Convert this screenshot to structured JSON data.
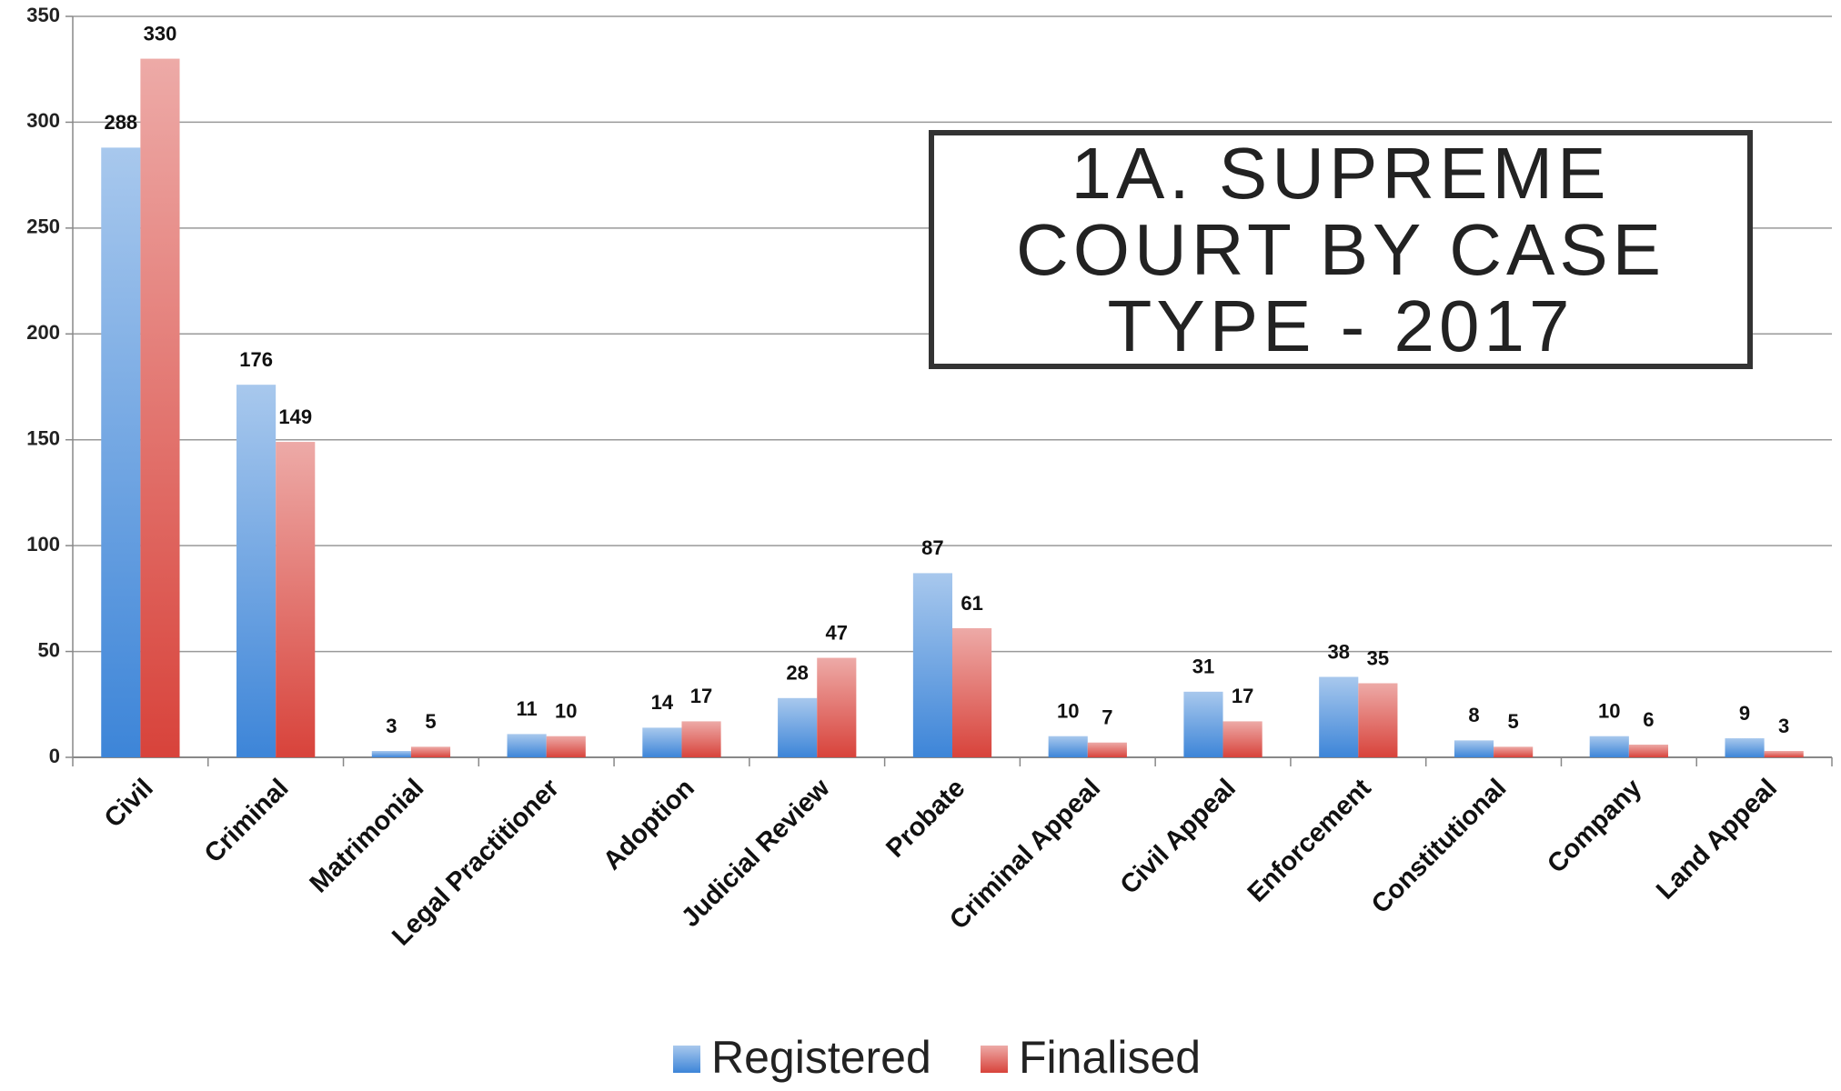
{
  "chart_data": {
    "type": "bar",
    "title": "1A. SUPREME COURT BY CASE TYPE - 2017",
    "categories": [
      "Civil",
      "Criminal",
      "Matrimonial",
      "Legal Practitioner",
      "Adoption",
      "Judicial Review",
      "Probate",
      "Criminal Appeal",
      "Civil  Appeal",
      "Enforcement",
      "Constitutional",
      "Company",
      "Land Appeal"
    ],
    "series": [
      {
        "name": "Registered",
        "color": "#3d85d8",
        "values": [
          288,
          176,
          3,
          11,
          14,
          28,
          87,
          10,
          31,
          38,
          8,
          10,
          9
        ]
      },
      {
        "name": "Finalised",
        "color": "#d8433b",
        "values": [
          330,
          149,
          5,
          10,
          17,
          47,
          61,
          7,
          17,
          35,
          5,
          6,
          3
        ]
      }
    ],
    "ylim": [
      0,
      350
    ],
    "yticks": [
      0,
      50,
      100,
      150,
      200,
      250,
      300,
      350
    ],
    "grid": true,
    "legend": "bottom"
  }
}
